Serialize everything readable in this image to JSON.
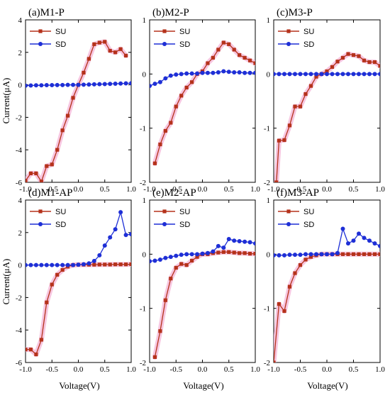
{
  "colors": {
    "su": "#b5321b",
    "sd": "#1e2fd6",
    "su_glow": "#f5b8d8"
  },
  "shared_axes": {
    "xlabel": "Voltage(V)",
    "ylabel": "Current(μA)"
  },
  "chart_data": [
    {
      "type": "line",
      "title": "(a)M1-P",
      "xlim": [
        -1.0,
        1.0
      ],
      "ylim": [
        -6,
        4
      ],
      "xticks": [
        -1.0,
        -0.5,
        0.0,
        0.5,
        1.0
      ],
      "xtick_labels": [
        "-1.0",
        "-0.5",
        "0.0",
        "0.5",
        "1.0"
      ],
      "yticks": [
        -6,
        -4,
        -2,
        0,
        2,
        4
      ],
      "ytick_labels": [
        "-6",
        "-4",
        "-2",
        "0",
        "2",
        "4"
      ],
      "legend_position": "top-left",
      "series": [
        {
          "name": "SU",
          "marker": "square",
          "x": [
            -1.0,
            -0.9,
            -0.8,
            -0.7,
            -0.6,
            -0.5,
            -0.4,
            -0.3,
            -0.2,
            -0.1,
            0.0,
            0.1,
            0.2,
            0.3,
            0.4,
            0.5,
            0.6,
            0.7,
            0.8,
            0.9
          ],
          "y": [
            -5.9,
            -5.45,
            -5.45,
            -5.95,
            -5.0,
            -4.9,
            -4.0,
            -2.8,
            -1.9,
            -0.8,
            0.0,
            0.75,
            1.6,
            2.5,
            2.6,
            2.65,
            2.1,
            2.0,
            2.2,
            1.8
          ]
        },
        {
          "name": "SD",
          "marker": "circle",
          "x": [
            -1.0,
            -0.9,
            -0.8,
            -0.7,
            -0.6,
            -0.5,
            -0.4,
            -0.3,
            -0.2,
            -0.1,
            0.0,
            0.1,
            0.2,
            0.3,
            0.4,
            0.5,
            0.6,
            0.7,
            0.8,
            0.9,
            1.0
          ],
          "y": [
            -0.05,
            -0.04,
            -0.03,
            -0.03,
            -0.02,
            -0.02,
            -0.01,
            -0.01,
            0.0,
            0.0,
            0.0,
            0.01,
            0.02,
            0.03,
            0.04,
            0.05,
            0.06,
            0.07,
            0.08,
            0.09,
            0.1
          ]
        }
      ]
    },
    {
      "type": "line",
      "title": "(b)M2-P",
      "xlim": [
        -1.0,
        1.0
      ],
      "ylim": [
        -2,
        1
      ],
      "xticks": [
        -1.0,
        -0.5,
        0.0,
        0.5,
        1.0
      ],
      "xtick_labels": [
        "-1.0",
        "-0.5",
        "0.0",
        "0.5",
        "1.0"
      ],
      "yticks": [
        -2,
        -1,
        0,
        1
      ],
      "ytick_labels": [
        "-2",
        "-1",
        "0",
        "1"
      ],
      "legend_position": "top-left",
      "series": [
        {
          "name": "SU",
          "marker": "square",
          "x": [
            -0.9,
            -0.8,
            -0.7,
            -0.6,
            -0.5,
            -0.4,
            -0.3,
            -0.2,
            -0.1,
            0.0,
            0.1,
            0.2,
            0.3,
            0.4,
            0.5,
            0.6,
            0.7,
            0.8,
            0.9,
            1.0
          ],
          "y": [
            -1.65,
            -1.3,
            -1.05,
            -0.9,
            -0.6,
            -0.4,
            -0.25,
            -0.15,
            0.0,
            0.05,
            0.2,
            0.3,
            0.45,
            0.58,
            0.55,
            0.45,
            0.35,
            0.3,
            0.25,
            0.2
          ]
        },
        {
          "name": "SD",
          "marker": "circle",
          "x": [
            -1.0,
            -0.9,
            -0.8,
            -0.7,
            -0.6,
            -0.5,
            -0.4,
            -0.3,
            -0.2,
            -0.1,
            0.0,
            0.1,
            0.2,
            0.3,
            0.4,
            0.5,
            0.6,
            0.7,
            0.8,
            0.9,
            1.0
          ],
          "y": [
            -0.22,
            -0.18,
            -0.15,
            -0.08,
            -0.03,
            -0.01,
            0.0,
            0.01,
            0.01,
            0.01,
            0.02,
            0.02,
            0.02,
            0.03,
            0.05,
            0.04,
            0.03,
            0.03,
            0.02,
            0.02,
            0.02
          ]
        }
      ]
    },
    {
      "type": "line",
      "title": "(c)M3-P",
      "xlim": [
        -1.0,
        1.0
      ],
      "ylim": [
        -2,
        1
      ],
      "xticks": [
        -1.0,
        -0.5,
        0.0,
        0.5,
        1.0
      ],
      "xtick_labels": [
        "-1.0",
        "-0.5",
        "0.0",
        "0.5",
        "1.0"
      ],
      "yticks": [
        -2,
        -1,
        0,
        1
      ],
      "ytick_labels": [
        "-2",
        "-1",
        "0",
        "1"
      ],
      "legend_position": "top-left",
      "series": [
        {
          "name": "SU",
          "marker": "square",
          "x": [
            -0.95,
            -0.9,
            -0.8,
            -0.7,
            -0.6,
            -0.5,
            -0.4,
            -0.3,
            -0.2,
            -0.1,
            0.0,
            0.1,
            0.2,
            0.3,
            0.4,
            0.5,
            0.6,
            0.7,
            0.8,
            0.9,
            1.0
          ],
          "y": [
            -2.0,
            -1.23,
            -1.22,
            -0.95,
            -0.6,
            -0.6,
            -0.37,
            -0.22,
            -0.05,
            0.0,
            0.05,
            0.13,
            0.23,
            0.3,
            0.37,
            0.35,
            0.33,
            0.25,
            0.22,
            0.22,
            0.15
          ]
        },
        {
          "name": "SD",
          "marker": "circle",
          "x": [
            -1.0,
            -0.9,
            -0.8,
            -0.7,
            -0.6,
            -0.5,
            -0.4,
            -0.3,
            -0.2,
            -0.1,
            0.0,
            0.1,
            0.2,
            0.3,
            0.4,
            0.5,
            0.6,
            0.7,
            0.8,
            0.9,
            1.0
          ],
          "y": [
            0.0,
            0.0,
            0.0,
            0.0,
            0.0,
            0.0,
            0.0,
            0.0,
            0.0,
            0.0,
            0.0,
            0.0,
            0.0,
            0.0,
            0.0,
            0.0,
            0.0,
            0.0,
            0.0,
            0.0,
            0.0
          ]
        }
      ]
    },
    {
      "type": "line",
      "title": "(d)M1-AP",
      "xlim": [
        -1.0,
        1.0
      ],
      "ylim": [
        -6,
        4
      ],
      "xticks": [
        -1.0,
        -0.5,
        0.0,
        0.5,
        1.0
      ],
      "xtick_labels": [
        "-1.0",
        "-0.5",
        "0.0",
        "0.5",
        "1.0"
      ],
      "yticks": [
        -6,
        -4,
        -2,
        0,
        2,
        4
      ],
      "ytick_labels": [
        "-6",
        "-4",
        "-2",
        "0",
        "2",
        "4"
      ],
      "legend_position": "top-left",
      "series": [
        {
          "name": "SU",
          "marker": "square",
          "x": [
            -1.0,
            -0.9,
            -0.8,
            -0.7,
            -0.6,
            -0.5,
            -0.4,
            -0.3,
            -0.2,
            -0.1,
            0.0,
            0.1,
            0.2,
            0.3,
            0.4,
            0.5,
            0.6,
            0.7,
            0.8,
            0.9,
            1.0
          ],
          "y": [
            -5.2,
            -5.2,
            -5.5,
            -4.6,
            -2.3,
            -1.2,
            -0.6,
            -0.3,
            -0.1,
            0.0,
            0.02,
            0.02,
            0.02,
            0.02,
            0.03,
            0.03,
            0.03,
            0.04,
            0.04,
            0.04,
            0.05
          ]
        },
        {
          "name": "SD",
          "marker": "circle",
          "x": [
            -1.0,
            -0.9,
            -0.8,
            -0.7,
            -0.6,
            -0.5,
            -0.4,
            -0.3,
            -0.2,
            -0.1,
            0.0,
            0.1,
            0.2,
            0.3,
            0.4,
            0.5,
            0.6,
            0.7,
            0.8,
            0.9,
            1.0
          ],
          "y": [
            0.0,
            0.0,
            0.0,
            0.0,
            0.0,
            0.0,
            0.0,
            0.0,
            0.0,
            0.0,
            0.02,
            0.05,
            0.1,
            0.25,
            0.6,
            1.2,
            1.7,
            2.2,
            3.25,
            1.85,
            1.9
          ]
        }
      ]
    },
    {
      "type": "line",
      "title": "(e)M2-AP",
      "xlim": [
        -1.0,
        1.0
      ],
      "ylim": [
        -2,
        1
      ],
      "xticks": [
        -1.0,
        -0.5,
        0.0,
        0.5,
        1.0
      ],
      "xtick_labels": [
        "-1.0",
        "-0.5",
        "0.0",
        "0.5",
        "1.0"
      ],
      "yticks": [
        -2,
        -1,
        0,
        1
      ],
      "ytick_labels": [
        "-2",
        "-1",
        "0",
        "1"
      ],
      "legend_position": "top-left",
      "series": [
        {
          "name": "SU",
          "marker": "square",
          "x": [
            -0.9,
            -0.8,
            -0.7,
            -0.6,
            -0.5,
            -0.4,
            -0.3,
            -0.2,
            -0.1,
            0.0,
            0.1,
            0.2,
            0.3,
            0.4,
            0.5,
            0.6,
            0.7,
            0.8,
            0.9,
            1.0
          ],
          "y": [
            -1.9,
            -1.42,
            -0.85,
            -0.45,
            -0.25,
            -0.18,
            -0.2,
            -0.12,
            -0.05,
            0.0,
            0.0,
            0.02,
            0.03,
            0.04,
            0.04,
            0.03,
            0.02,
            0.02,
            0.01,
            0.01
          ]
        },
        {
          "name": "SD",
          "marker": "circle",
          "x": [
            -1.0,
            -0.9,
            -0.8,
            -0.7,
            -0.6,
            -0.5,
            -0.4,
            -0.3,
            -0.2,
            -0.1,
            0.0,
            0.1,
            0.2,
            0.3,
            0.4,
            0.5,
            0.6,
            0.7,
            0.8,
            0.9,
            1.0
          ],
          "y": [
            -0.13,
            -0.12,
            -0.1,
            -0.07,
            -0.05,
            -0.03,
            -0.01,
            0.0,
            0.0,
            0.0,
            0.01,
            0.02,
            0.05,
            0.15,
            0.12,
            0.28,
            0.25,
            0.24,
            0.23,
            0.22,
            0.2
          ]
        }
      ]
    },
    {
      "type": "line",
      "title": "(f)M3-AP",
      "xlim": [
        -1.0,
        1.0
      ],
      "ylim": [
        -2,
        1
      ],
      "xticks": [
        -1.0,
        -0.5,
        0.0,
        0.5,
        1.0
      ],
      "xtick_labels": [
        "-1.0",
        "-0.5",
        "0.0",
        "0.5",
        "1.0"
      ],
      "yticks": [
        -2,
        -1,
        0,
        1
      ],
      "ytick_labels": [
        "-2",
        "-1",
        "0",
        "1"
      ],
      "legend_position": "top-left",
      "series": [
        {
          "name": "SU",
          "marker": "square",
          "x": [
            -1.0,
            -0.9,
            -0.8,
            -0.7,
            -0.6,
            -0.5,
            -0.4,
            -0.3,
            -0.2,
            -0.1,
            0.0,
            0.1,
            0.2,
            0.3,
            0.4,
            0.5,
            0.6,
            0.7,
            0.8,
            0.9,
            1.0
          ],
          "y": [
            -2.0,
            -0.92,
            -1.05,
            -0.6,
            -0.35,
            -0.2,
            -0.1,
            -0.05,
            -0.02,
            0.0,
            0.0,
            0.0,
            0.0,
            0.0,
            0.0,
            0.0,
            0.0,
            0.0,
            0.0,
            0.0,
            0.0
          ]
        },
        {
          "name": "SD",
          "marker": "circle",
          "x": [
            -1.0,
            -0.9,
            -0.8,
            -0.7,
            -0.6,
            -0.5,
            -0.4,
            -0.3,
            -0.2,
            -0.1,
            0.0,
            0.1,
            0.2,
            0.3,
            0.4,
            0.5,
            0.6,
            0.7,
            0.8,
            0.9,
            1.0
          ],
          "y": [
            -0.02,
            -0.02,
            -0.02,
            -0.01,
            -0.01,
            -0.01,
            0.0,
            0.0,
            0.0,
            0.0,
            0.0,
            0.0,
            0.02,
            0.47,
            0.2,
            0.25,
            0.38,
            0.3,
            0.25,
            0.2,
            0.15
          ]
        }
      ]
    }
  ]
}
